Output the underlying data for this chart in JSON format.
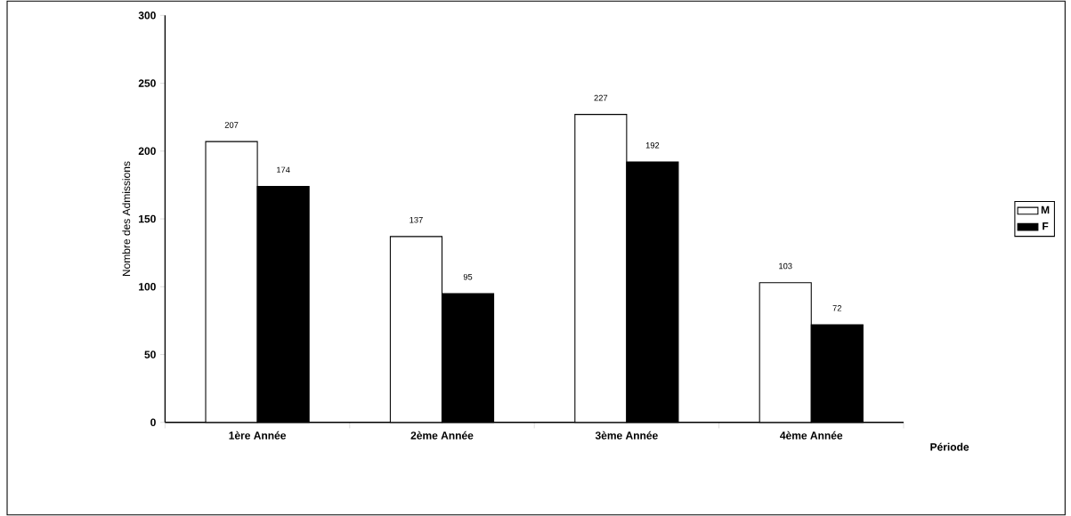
{
  "chart_data": {
    "type": "bar",
    "xlabel": "Période",
    "ylabel": "Nombre des Admissions",
    "categories": [
      "1ère Année",
      "2ème Année",
      "3ème Année",
      "4ème Année"
    ],
    "series": [
      {
        "name": "M",
        "color": "#ffffff",
        "values": [
          207,
          137,
          227,
          103
        ]
      },
      {
        "name": "F",
        "color": "#000000",
        "values": [
          174,
          95,
          192,
          72
        ]
      }
    ],
    "ylim": [
      0,
      300
    ],
    "yticks": [
      0,
      50,
      100,
      150,
      200,
      250,
      300
    ],
    "data_labels": true,
    "legend": "right"
  }
}
